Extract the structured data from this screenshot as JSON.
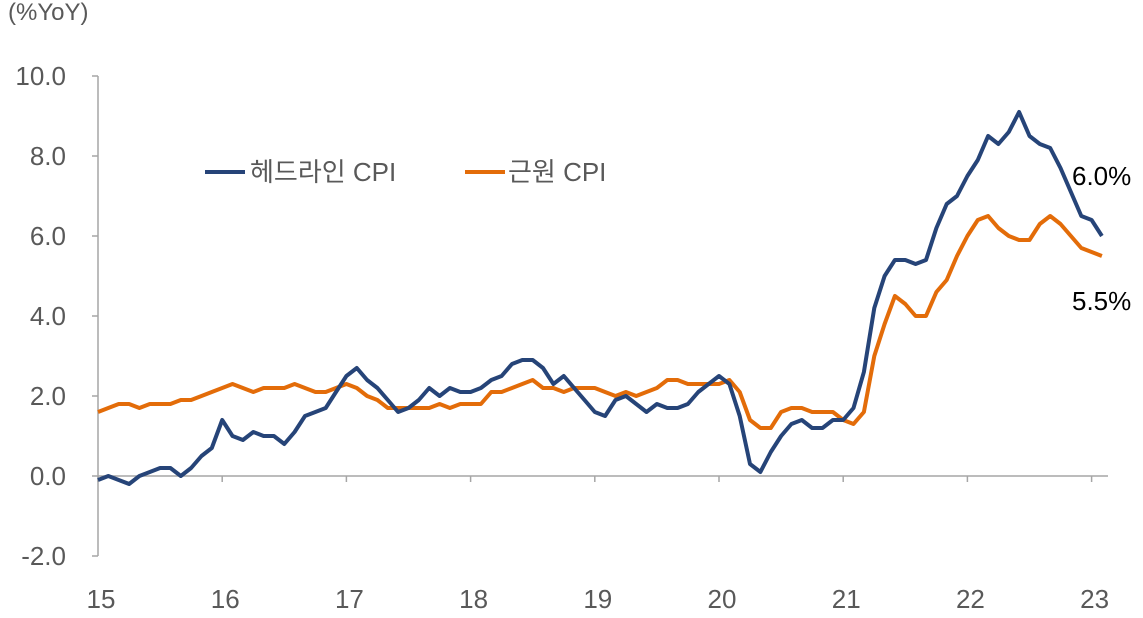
{
  "chart_data": {
    "type": "line",
    "unit_label": "(%YoY)",
    "x_start": "2015-01",
    "frequency": "monthly",
    "xticks": [
      "15",
      "16",
      "17",
      "18",
      "19",
      "20",
      "21",
      "22",
      "23"
    ],
    "yticks": [
      "-2.0",
      "0.0",
      "2.0",
      "4.0",
      "6.0",
      "8.0",
      "10.0"
    ],
    "ylim": [
      -2,
      10
    ],
    "legend_placement": "top-left",
    "series": [
      {
        "name": "헤드라인 CPI",
        "color": "#264478",
        "end_label": "6.0%",
        "values": [
          -0.1,
          0.0,
          -0.1,
          -0.2,
          0.0,
          0.1,
          0.2,
          0.2,
          0.0,
          0.2,
          0.5,
          0.7,
          1.4,
          1.0,
          0.9,
          1.1,
          1.0,
          1.0,
          0.8,
          1.1,
          1.5,
          1.6,
          1.7,
          2.1,
          2.5,
          2.7,
          2.4,
          2.2,
          1.9,
          1.6,
          1.7,
          1.9,
          2.2,
          2.0,
          2.2,
          2.1,
          2.1,
          2.2,
          2.4,
          2.5,
          2.8,
          2.9,
          2.9,
          2.7,
          2.3,
          2.5,
          2.2,
          1.9,
          1.6,
          1.5,
          1.9,
          2.0,
          1.8,
          1.6,
          1.8,
          1.7,
          1.7,
          1.8,
          2.1,
          2.3,
          2.5,
          2.3,
          1.5,
          0.3,
          0.1,
          0.6,
          1.0,
          1.3,
          1.4,
          1.2,
          1.2,
          1.4,
          1.4,
          1.7,
          2.6,
          4.2,
          5.0,
          5.4,
          5.4,
          5.3,
          5.4,
          6.2,
          6.8,
          7.0,
          7.5,
          7.9,
          8.5,
          8.3,
          8.6,
          9.1,
          8.5,
          8.3,
          8.2,
          7.7,
          7.1,
          6.5,
          6.4,
          6.0
        ]
      },
      {
        "name": "근원 CPI",
        "color": "#E36C09",
        "end_label": "5.5%",
        "values": [
          1.6,
          1.7,
          1.8,
          1.8,
          1.7,
          1.8,
          1.8,
          1.8,
          1.9,
          1.9,
          2.0,
          2.1,
          2.2,
          2.3,
          2.2,
          2.1,
          2.2,
          2.2,
          2.2,
          2.3,
          2.2,
          2.1,
          2.1,
          2.2,
          2.3,
          2.2,
          2.0,
          1.9,
          1.7,
          1.7,
          1.7,
          1.7,
          1.7,
          1.8,
          1.7,
          1.8,
          1.8,
          1.8,
          2.1,
          2.1,
          2.2,
          2.3,
          2.4,
          2.2,
          2.2,
          2.1,
          2.2,
          2.2,
          2.2,
          2.1,
          2.0,
          2.1,
          2.0,
          2.1,
          2.2,
          2.4,
          2.4,
          2.3,
          2.3,
          2.3,
          2.3,
          2.4,
          2.1,
          1.4,
          1.2,
          1.2,
          1.6,
          1.7,
          1.7,
          1.6,
          1.6,
          1.6,
          1.4,
          1.3,
          1.6,
          3.0,
          3.8,
          4.5,
          4.3,
          4.0,
          4.0,
          4.6,
          4.9,
          5.5,
          6.0,
          6.4,
          6.5,
          6.2,
          6.0,
          5.9,
          5.9,
          6.3,
          6.5,
          6.3,
          6.0,
          5.7,
          5.6,
          5.5
        ]
      }
    ]
  }
}
